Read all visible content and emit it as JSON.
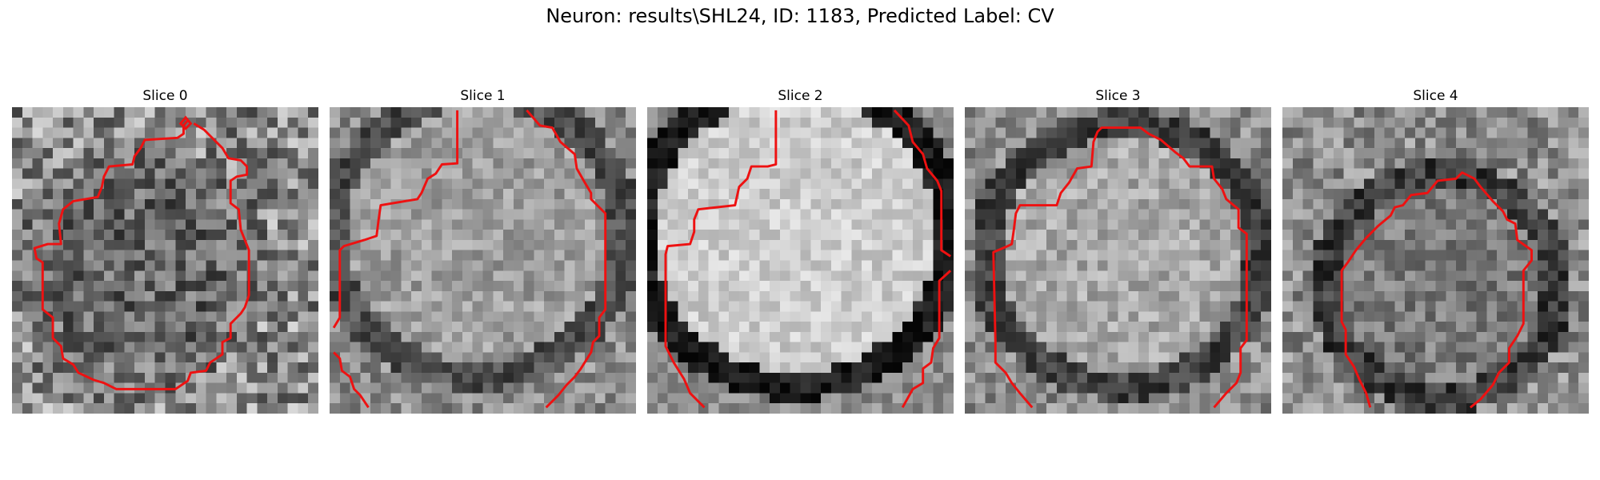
{
  "figure": {
    "title": "Neuron: results\\SHL24, ID: 1183, Predicted Label: CV",
    "contour_color": "#ee1111"
  },
  "panels": [
    {
      "title": "Slice 0",
      "seed": 11,
      "bright": 0.4,
      "ring": 0.1,
      "noise": 0.3,
      "cx": 12,
      "cy": 15,
      "r": 10
    },
    {
      "title": "Slice 1",
      "seed": 23,
      "bright": 0.62,
      "ring": 0.25,
      "noise": 0.18,
      "cx": 14,
      "cy": 12,
      "r": 13
    },
    {
      "title": "Slice 2",
      "seed": 37,
      "bright": 0.8,
      "ring": 0.45,
      "noise": 0.14,
      "cx": 14,
      "cy": 12,
      "r": 14
    },
    {
      "title": "Slice 3",
      "seed": 41,
      "bright": 0.66,
      "ring": 0.3,
      "noise": 0.18,
      "cx": 15,
      "cy": 14,
      "r": 12
    },
    {
      "title": "Slice 4",
      "seed": 53,
      "bright": 0.48,
      "ring": 0.32,
      "noise": 0.2,
      "cx": 15,
      "cy": 17,
      "r": 10
    }
  ]
}
